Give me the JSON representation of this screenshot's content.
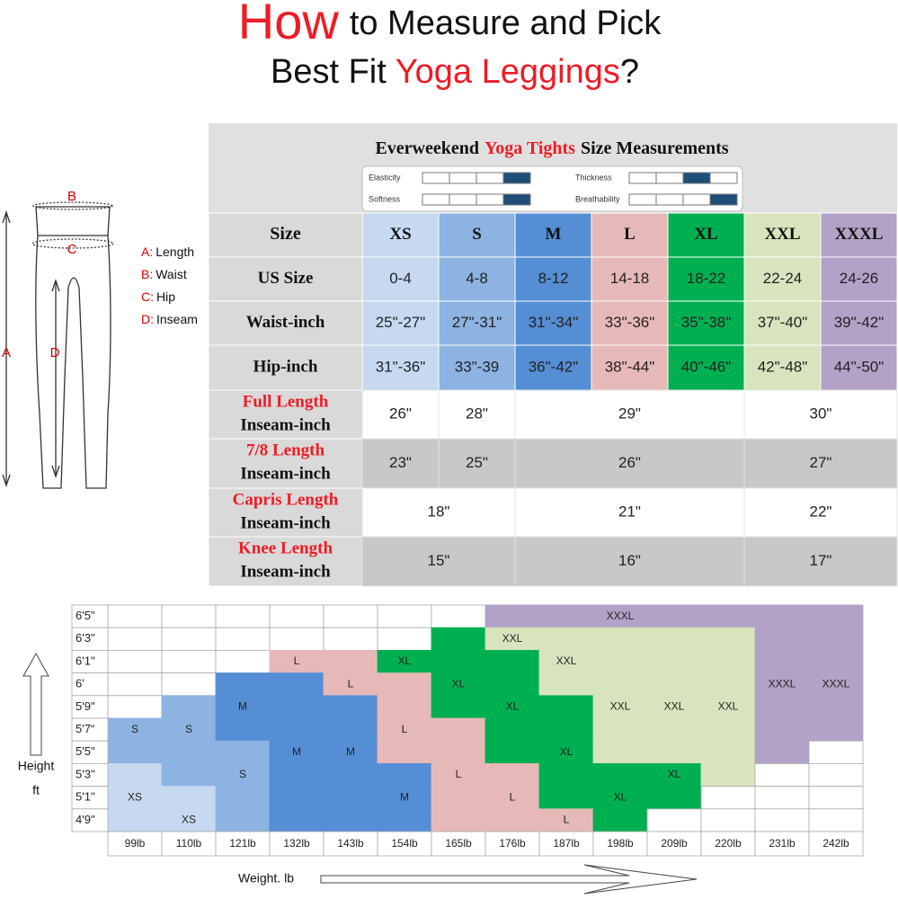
{
  "title": {
    "line1_red": "How",
    "line1": "to Measure and Pick",
    "line2": "Best Fit",
    "line2_red": "Yoga Leggings",
    "line2_end": "?"
  },
  "diagram": {
    "letters": [
      "A",
      "B",
      "C",
      "D"
    ],
    "legend": [
      {
        "letter": "A:",
        "text": "Length"
      },
      {
        "letter": "B:",
        "text": "Waist"
      },
      {
        "letter": "C:",
        "text": "Hip"
      },
      {
        "letter": "D:",
        "text": "Inseam"
      }
    ]
  },
  "size_colors": {
    "XS": "#c6d9f1",
    "S": "#8db3e2",
    "M": "#558ed5",
    "L": "#e6b9b8",
    "XL": "#00b050",
    "XXL": "#d7e4bd",
    "XXXL": "#b3a2c7"
  },
  "size_table": {
    "title_parts": [
      "Everweekend",
      "Yoga Tights",
      "Size Measurements"
    ],
    "properties": [
      {
        "name": "Elasticity",
        "level": 4
      },
      {
        "name": "Thickness",
        "level": 3
      },
      {
        "name": "Softness",
        "level": 4
      },
      {
        "name": "Breathability",
        "level": 4
      }
    ],
    "filled_color": "#1f4e79",
    "header": "Size",
    "sizes": [
      "XS",
      "S",
      "M",
      "L",
      "XL",
      "XXL",
      "XXXL"
    ],
    "rows": [
      {
        "label": "US Size",
        "cells": [
          "0-4",
          "4-8",
          "8-12",
          "14-18",
          "18-22",
          "22-24",
          "24-26"
        ]
      },
      {
        "label": "Waist-inch",
        "cells": [
          "25\"-27\"",
          "27\"-31\"",
          "31\"-34\"",
          "33\"-36\"",
          "35\"-38\"",
          "37\"-40\"",
          "39\"-42\""
        ]
      },
      {
        "label": "Hip-inch",
        "cells": [
          "31\"-36\"",
          "33\"-39",
          "36\"-42\"",
          "38\"-44\"",
          "40\"-46\"",
          "42\"-48\"",
          "44\"-50\""
        ]
      },
      {
        "label_red": "Full Length",
        "label": "Inseam-inch",
        "shade": false,
        "cells": [
          "26\"",
          "28\"",
          "29\"",
          null,
          null,
          "30\"",
          null
        ]
      },
      {
        "label_red": "7/8 Length",
        "label": "Inseam-inch",
        "shade": true,
        "cells": [
          "23\"",
          "25\"",
          "26\"",
          null,
          null,
          "27\"",
          null
        ]
      },
      {
        "label_red": "Capris Length",
        "label": "Inseam-inch",
        "shade": false,
        "cells": [
          "18\"",
          null,
          "21\"",
          null,
          null,
          "22\"",
          null
        ]
      },
      {
        "label_red": "Knee Length",
        "label": "Inseam-inch",
        "shade": true,
        "cells": [
          "15\"",
          null,
          "16\"",
          null,
          null,
          "17\"",
          null
        ]
      }
    ]
  },
  "fit_chart": {
    "heights": [
      "6'5\"",
      "6'3\"",
      "6'1\"",
      "6'",
      "5'9\"",
      "5'7“",
      "5'5\"",
      "5'3\"",
      "5'1\"",
      "4'9\""
    ],
    "weights": [
      "99lb",
      "110lb",
      "121lb",
      "132lb",
      "143lb",
      "154lb",
      "165lb",
      "176lb",
      "187lb",
      "198lb",
      "209lb",
      "220lb",
      "231lb",
      "242lb"
    ],
    "grid": [
      [
        null,
        null,
        null,
        null,
        null,
        null,
        null,
        "XXXL",
        "XXXL",
        "XXXL",
        "XXXL",
        "XXXL",
        "XXXL",
        "XXXL"
      ],
      [
        null,
        null,
        null,
        null,
        null,
        null,
        "XL",
        "XXL",
        "XXL",
        "XXL",
        "XXL",
        "XXL",
        "XXXL",
        "XXXL"
      ],
      [
        null,
        null,
        null,
        "L",
        "L",
        "XL",
        "XL",
        "XL",
        "XXL",
        "XXL",
        "XXL",
        "XXL",
        "XXXL",
        "XXXL"
      ],
      [
        null,
        null,
        "M",
        "M",
        "L",
        "L",
        "XL",
        "XL",
        "XXL",
        "XXL",
        "XXL",
        "XXL",
        "XXXL",
        "XXXL"
      ],
      [
        null,
        "S",
        "M",
        "M",
        "M",
        "L",
        "XL",
        "XL",
        "XL",
        "XXL",
        "XXL",
        "XXL",
        "XXXL",
        "XXXL"
      ],
      [
        "S",
        "S",
        "M",
        "M",
        "M",
        "L",
        "L",
        "XL",
        "XL",
        "XXL",
        "XXL",
        "XXL",
        "XXXL",
        "XXXL"
      ],
      [
        "S",
        "S",
        "S",
        "M",
        "M",
        "L",
        "L",
        "XL",
        "XL",
        "XXL",
        "XXL",
        "XXL",
        "XXXL",
        null
      ],
      [
        "XS",
        "S",
        "S",
        "M",
        "M",
        "M",
        "L",
        "L",
        "XL",
        "XL",
        "XL",
        "XXL",
        null,
        null
      ],
      [
        "XS",
        "XS",
        "S",
        "M",
        "M",
        "M",
        "L",
        "L",
        "XL",
        "XL",
        "XL",
        null,
        null,
        null
      ],
      [
        "XS",
        "XS",
        "S",
        "M",
        "M",
        "M",
        "L",
        "L",
        "L",
        "XL",
        null,
        null,
        null,
        null
      ]
    ],
    "labels": [
      {
        "text": "XXXL",
        "row": 0,
        "col": 9
      },
      {
        "text": "XXL",
        "row": 1,
        "col": 7
      },
      {
        "text": "XXL",
        "row": 2,
        "col": 8
      },
      {
        "text": "L",
        "row": 2,
        "col": 3
      },
      {
        "text": "L",
        "row": 3,
        "col": 4
      },
      {
        "text": "XL",
        "row": 2,
        "col": 5
      },
      {
        "text": "XL",
        "row": 3,
        "col": 6
      },
      {
        "text": "XXXL",
        "row": 3,
        "col": 13
      },
      {
        "text": "XXXL",
        "row": 3,
        "col": 12
      },
      {
        "text": "XXL",
        "row": 4,
        "col": 9
      },
      {
        "text": "XXL",
        "row": 4,
        "col": 10
      },
      {
        "text": "XXL",
        "row": 4,
        "col": 11
      },
      {
        "text": "M",
        "row": 4,
        "col": 2
      },
      {
        "text": "XL",
        "row": 4,
        "col": 7
      },
      {
        "text": "L",
        "row": 5,
        "col": 5
      },
      {
        "text": "S",
        "row": 5,
        "col": 0
      },
      {
        "text": "S",
        "row": 5,
        "col": 1
      },
      {
        "text": "M",
        "row": 6,
        "col": 3
      },
      {
        "text": "M",
        "row": 6,
        "col": 4
      },
      {
        "text": "XL",
        "row": 6,
        "col": 8
      },
      {
        "text": "S",
        "row": 7,
        "col": 2
      },
      {
        "text": "L",
        "row": 7,
        "col": 6
      },
      {
        "text": "XL",
        "row": 7,
        "col": 10
      },
      {
        "text": "XS",
        "row": 8,
        "col": 0
      },
      {
        "text": "XS",
        "row": 9,
        "col": 1
      },
      {
        "text": "L",
        "row": 8,
        "col": 7
      },
      {
        "text": "XL",
        "row": 8,
        "col": 9
      },
      {
        "text": "M",
        "row": 8,
        "col": 5
      },
      {
        "text": "L",
        "row": 9,
        "col": 8
      }
    ],
    "y_label": [
      "Height",
      "ft"
    ],
    "x_label": "Weight. lb"
  }
}
